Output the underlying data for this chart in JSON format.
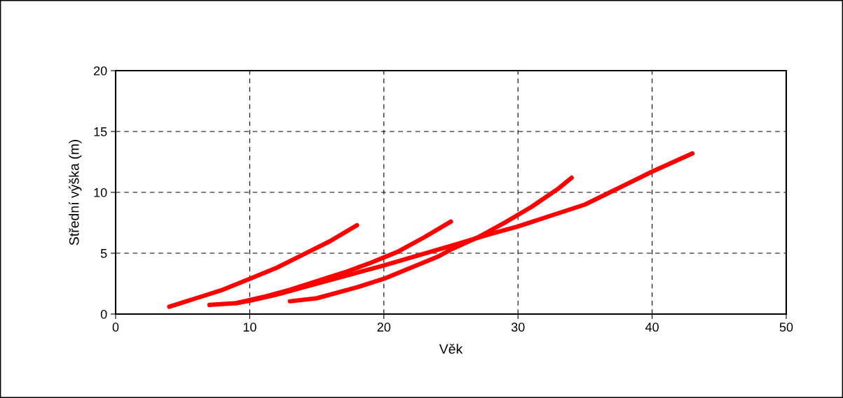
{
  "chart_data": {
    "type": "line",
    "xlabel": "Věk",
    "ylabel": "Střední výška (m)",
    "xlim": [
      0,
      50
    ],
    "xticks": [
      0,
      10,
      20,
      30,
      40,
      50
    ],
    "ylim": [
      0,
      20
    ],
    "yticks": [
      0,
      5,
      10,
      15,
      20
    ],
    "grid": true,
    "legend": false,
    "marker": "none",
    "line_style": "solid",
    "series": [
      {
        "color": "#ff0000",
        "x": [
          4,
          6,
          8,
          10,
          12,
          14,
          16,
          18
        ],
        "values": [
          0.6,
          1.3,
          2.0,
          2.9,
          3.8,
          4.9,
          6.0,
          7.3
        ]
      },
      {
        "color": "#ff0000",
        "x": [
          7,
          9,
          11,
          13,
          15,
          17,
          19,
          21,
          23,
          25
        ],
        "values": [
          0.75,
          0.9,
          1.4,
          2.0,
          2.7,
          3.4,
          4.2,
          5.1,
          6.3,
          7.6
        ]
      },
      {
        "color": "#ff0000",
        "x": [
          9,
          10,
          12,
          15,
          20,
          25,
          28,
          30,
          35,
          40,
          43
        ],
        "values": [
          0.9,
          1.1,
          1.6,
          2.5,
          4.0,
          5.6,
          6.6,
          7.2,
          9.0,
          11.7,
          13.2
        ]
      },
      {
        "color": "#ff0000",
        "x": [
          13,
          15,
          18,
          20,
          22,
          24,
          25,
          27,
          29,
          31,
          33,
          34
        ],
        "values": [
          1.05,
          1.3,
          2.2,
          2.9,
          3.8,
          4.7,
          5.3,
          6.3,
          7.5,
          8.8,
          10.3,
          11.2
        ]
      }
    ]
  }
}
